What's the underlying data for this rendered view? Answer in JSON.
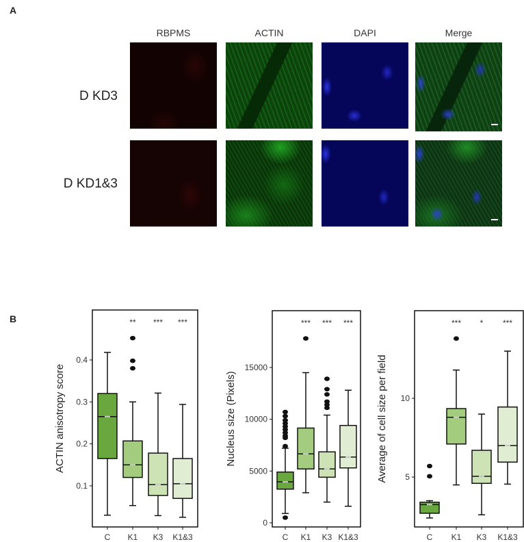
{
  "panel_a": {
    "letter": "A",
    "columns": [
      "RBPMS",
      "ACTIN",
      "DAPI",
      "Merge"
    ],
    "rows": [
      "D KD3",
      "D KD1&3"
    ]
  },
  "panel_b": {
    "letter": "B"
  },
  "colors": {
    "C": "#6aa73f",
    "K1": "#a3cc7e",
    "K3": "#cde3b5",
    "K1&3": "#e1edd3",
    "median_mark": "#c8c8c8"
  },
  "chart_data": [
    {
      "type": "box",
      "ylabel": "ACTIN anisotropy score",
      "categories": [
        "C",
        "K1",
        "K3",
        "K1&3"
      ],
      "yticks": [
        0.1,
        0.2,
        0.3,
        0.4
      ],
      "ylim": [
        0.002,
        0.519
      ],
      "significance": [
        "",
        "**",
        "***",
        "***"
      ],
      "boxes": [
        {
          "low": 0.03,
          "q1": 0.165,
          "median": 0.265,
          "q3": 0.32,
          "high": 0.418,
          "outliers": []
        },
        {
          "low": 0.053,
          "q1": 0.12,
          "median": 0.15,
          "q3": 0.207,
          "high": 0.3,
          "outliers": [
            0.38,
            0.398,
            0.452
          ]
        },
        {
          "low": 0.029,
          "q1": 0.077,
          "median": 0.103,
          "q3": 0.178,
          "high": 0.321,
          "outliers": []
        },
        {
          "low": 0.025,
          "q1": 0.07,
          "median": 0.105,
          "q3": 0.165,
          "high": 0.294,
          "outliers": []
        }
      ]
    },
    {
      "type": "box",
      "ylabel": "Nucleus size (Pixels)",
      "categories": [
        "C",
        "K1",
        "K3",
        "K1&3"
      ],
      "yticks": [
        0,
        5000,
        10000,
        15000
      ],
      "ylim": [
        -400,
        20480
      ],
      "significance": [
        "",
        "***",
        "***",
        "***"
      ],
      "boxes": [
        {
          "low": 900,
          "q1": 3250,
          "median": 3950,
          "q3": 4900,
          "high": 7200,
          "outliers": [
            500,
            7400,
            8200,
            8400,
            8700,
            9000,
            9300,
            9600,
            9900,
            10300,
            10700
          ]
        },
        {
          "low": 2900,
          "q1": 5200,
          "median": 6650,
          "q3": 9150,
          "high": 14500,
          "outliers": [
            17800
          ]
        },
        {
          "low": 2000,
          "q1": 4400,
          "median": 5200,
          "q3": 6850,
          "high": 10400,
          "outliers": [
            11100,
            11400,
            11700,
            12400,
            12900,
            13900
          ]
        },
        {
          "low": 1600,
          "q1": 5300,
          "median": 6350,
          "q3": 9400,
          "high": 12800,
          "outliers": []
        }
      ]
    },
    {
      "type": "box",
      "ylabel": "Average of cell size per field",
      "categories": [
        "C",
        "K1",
        "K3",
        "K1&3"
      ],
      "yticks": [
        5,
        10
      ],
      "ylim": [
        1.83,
        15.57
      ],
      "significance": [
        "",
        "***",
        "*",
        "***"
      ],
      "boxes": [
        {
          "low": 2.4,
          "q1": 2.7,
          "median": 3.25,
          "q3": 3.4,
          "high": 3.5,
          "outliers": [
            5.05,
            5.7
          ]
        },
        {
          "low": 4.5,
          "q1": 7.1,
          "median": 8.8,
          "q3": 9.35,
          "high": 11.8,
          "outliers": [
            13.8
          ]
        },
        {
          "low": 2.6,
          "q1": 4.6,
          "median": 5.05,
          "q3": 6.7,
          "high": 9.0,
          "outliers": []
        },
        {
          "low": 4.55,
          "q1": 5.95,
          "median": 7.0,
          "q3": 9.45,
          "high": 13.0,
          "outliers": []
        }
      ]
    }
  ]
}
